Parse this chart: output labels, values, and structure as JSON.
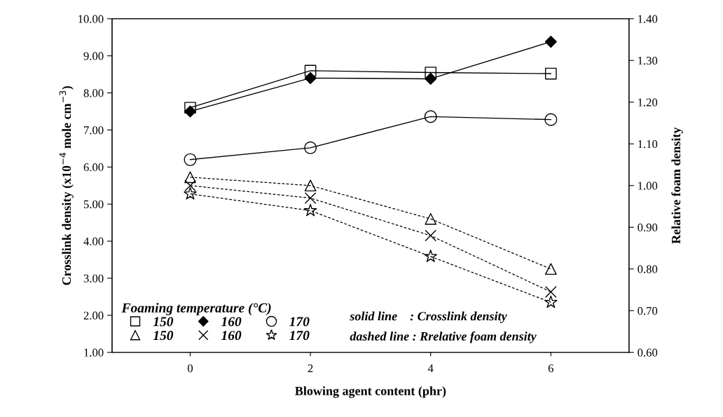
{
  "chart_data": {
    "type": "line",
    "xlabel": "Blowing agent content (phr)",
    "ylabel": "Crosslink density (x10$^{−4}$ mole cm$^{−3}$)",
    "y2label": "Relative foam density",
    "legend_title": "Foaming temperature (°C)",
    "x": [
      0,
      2,
      4,
      6
    ],
    "xlim": [
      -1.3,
      7.3
    ],
    "xticks": [
      0,
      2,
      4,
      6
    ],
    "ylim": [
      1,
      10
    ],
    "yticks": [
      {
        "value": 1,
        "label": "1.00"
      },
      {
        "value": 2,
        "label": "2.00"
      },
      {
        "value": 3,
        "label": "3.00"
      },
      {
        "value": 4,
        "label": "4.00"
      },
      {
        "value": 5,
        "label": "5.00"
      },
      {
        "value": 6,
        "label": "6.00"
      },
      {
        "value": 7,
        "label": "7.00"
      },
      {
        "value": 8,
        "label": "8.00"
      },
      {
        "value": 9,
        "label": "9.00"
      },
      {
        "value": 10,
        "label": "10.00"
      }
    ],
    "y2lim": [
      0.6,
      1.4
    ],
    "y2ticks": [
      {
        "value": 0.6,
        "label": "0.60"
      },
      {
        "value": 0.7,
        "label": "0.70"
      },
      {
        "value": 0.8,
        "label": "0.80"
      },
      {
        "value": 0.9,
        "label": "0.90"
      },
      {
        "value": 1.0,
        "label": "1.00"
      },
      {
        "value": 1.1,
        "label": "1.10"
      },
      {
        "value": 1.2,
        "label": "1.20"
      },
      {
        "value": 1.3,
        "label": "1.30"
      },
      {
        "value": 1.4,
        "label": "1.40"
      }
    ],
    "grid": false,
    "legend": "bottom left",
    "annotations": [
      "solid line    : Crosslink density",
      "dashed line : Rrelative foam density"
    ],
    "series": [
      {
        "name": "150",
        "color": "#000000",
        "marker": "square",
        "line_style": "solid",
        "values": [
          7.6,
          8.6,
          8.55,
          8.52
        ]
      },
      {
        "name": "160",
        "color": "#000000",
        "marker": "diamond",
        "line_style": "solid",
        "values": [
          7.5,
          8.4,
          8.38,
          9.38
        ]
      },
      {
        "name": "170",
        "color": "#000000",
        "marker": "circle",
        "line_style": "solid",
        "values": [
          6.2,
          6.52,
          7.36,
          7.28
        ]
      },
      {
        "name": "150",
        "color": "#000000",
        "marker": "triangle",
        "line_style": "dashed",
        "axis": "y2",
        "values": [
          1.02,
          1.0,
          0.92,
          0.8
        ]
      },
      {
        "name": "160",
        "color": "#000000",
        "marker": "cross",
        "line_style": "dashed",
        "axis": "y2",
        "values": [
          1.0,
          0.97,
          0.88,
          0.745
        ]
      },
      {
        "name": "170",
        "color": "#000000",
        "marker": "star",
        "line_style": "dashed",
        "axis": "y2",
        "values": [
          0.98,
          0.94,
          0.83,
          0.72
        ]
      }
    ]
  }
}
